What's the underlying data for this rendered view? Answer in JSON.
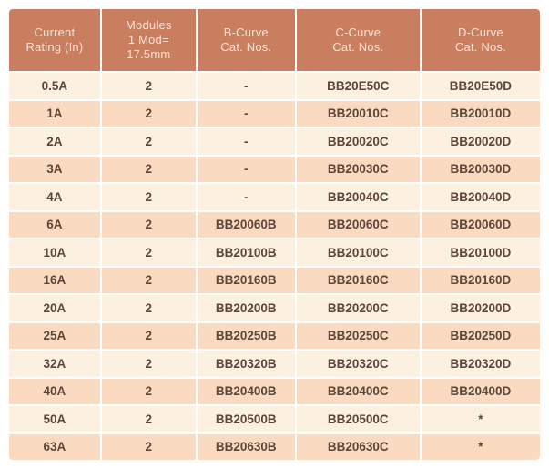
{
  "colors": {
    "header_bg": "#C97E60",
    "header_text": "#F9E3D8",
    "row_light": "#FCF0E1",
    "row_dark": "#FBDAC2",
    "cell_text": "#5D4637",
    "page_bg": "#FFFFFF"
  },
  "table": {
    "columns": [
      {
        "id": "current-rating",
        "lines": [
          "Current",
          "Rating (In)"
        ]
      },
      {
        "id": "modules",
        "lines": [
          "Modules",
          "1 Mod=",
          "17.5mm"
        ]
      },
      {
        "id": "b-curve",
        "lines": [
          "B-Curve",
          "Cat. Nos."
        ]
      },
      {
        "id": "c-curve",
        "lines": [
          "C-Curve",
          "Cat. Nos."
        ]
      },
      {
        "id": "d-curve",
        "lines": [
          "D-Curve",
          "Cat. Nos."
        ]
      }
    ],
    "rows": [
      [
        "0.5A",
        "2",
        "-",
        "BB20E50C",
        "BB20E50D"
      ],
      [
        "1A",
        "2",
        "-",
        "BB20010C",
        "BB20010D"
      ],
      [
        "2A",
        "2",
        "-",
        "BB20020C",
        "BB20020D"
      ],
      [
        "3A",
        "2",
        "-",
        "BB20030C",
        "BB20030D"
      ],
      [
        "4A",
        "2",
        "-",
        "BB20040C",
        "BB20040D"
      ],
      [
        "6A",
        "2",
        "BB20060B",
        "BB20060C",
        "BB20060D"
      ],
      [
        "10A",
        "2",
        "BB20100B",
        "BB20100C",
        "BB20100D"
      ],
      [
        "16A",
        "2",
        "BB20160B",
        "BB20160C",
        "BB20160D"
      ],
      [
        "20A",
        "2",
        "BB20200B",
        "BB20200C",
        "BB20200D"
      ],
      [
        "25A",
        "2",
        "BB20250B",
        "BB20250C",
        "BB20250D"
      ],
      [
        "32A",
        "2",
        "BB20320B",
        "BB20320C",
        "BB20320D"
      ],
      [
        "40A",
        "2",
        "BB20400B",
        "BB20400C",
        "BB20400D"
      ],
      [
        "50A",
        "2",
        "BB20500B",
        "BB20500C",
        "*"
      ],
      [
        "63A",
        "2",
        "BB20630B",
        "BB20630C",
        "*"
      ]
    ]
  }
}
